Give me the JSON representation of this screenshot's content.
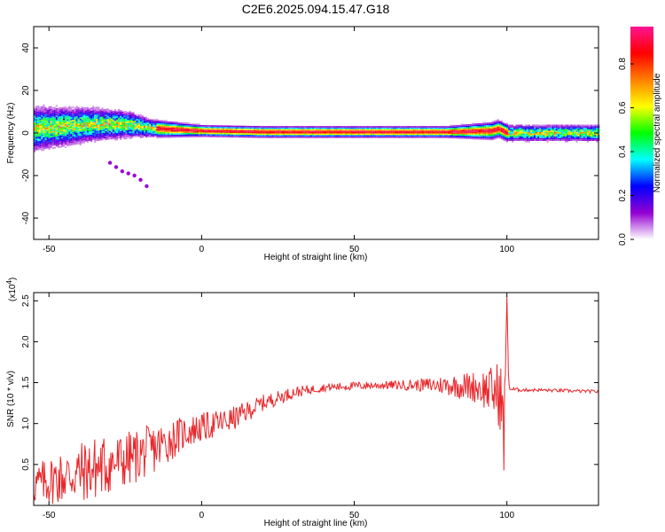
{
  "title": "C2E6.2025.094.15.47.G18",
  "chart_data": [
    {
      "type": "heatmap",
      "xlabel": "Height of straight line (km)",
      "ylabel": "Frequency (Hz)",
      "xlim": [
        -55,
        130
      ],
      "ylim": [
        -50,
        50
      ],
      "xticks": [
        -50,
        0,
        50,
        100
      ],
      "yticks": [
        40,
        20,
        0,
        -20,
        -40
      ],
      "colorbar": {
        "label": "Normalized spectral amplitude",
        "range": [
          0,
          0.97
        ],
        "ticks": [
          "0.0",
          "0.2",
          "0.4",
          "0.6",
          "0.8"
        ],
        "tick_values": [
          0,
          0.2,
          0.4,
          0.6,
          0.8
        ],
        "colors": [
          "#ffffff",
          "#9400d3",
          "#0000ff",
          "#00ffff",
          "#00ff00",
          "#ffff00",
          "#ff7f00",
          "#ff0000",
          "#ff1493"
        ]
      },
      "ridge": {
        "description_points_x": [
          -55,
          -45,
          -35,
          -25,
          -15,
          0,
          20,
          40,
          60,
          80,
          95,
          97,
          100,
          130
        ],
        "center_freq": [
          2,
          3,
          4,
          4,
          2,
          1,
          0.5,
          0.5,
          0.5,
          0.5,
          1,
          2,
          0,
          0
        ],
        "halfwidth": [
          8,
          7,
          6,
          5,
          3,
          2,
          2,
          2,
          2,
          2,
          3,
          3,
          3,
          3
        ],
        "max_amp_range_x": [
          -15,
          100
        ]
      },
      "scatter_tail": {
        "x": [
          -30,
          -28,
          -26,
          -24,
          -22,
          -20,
          -18
        ],
        "freq": [
          -14,
          -16,
          -18,
          -19,
          -20,
          -22,
          -25
        ]
      }
    },
    {
      "type": "line",
      "xlabel": "Height of straight line (km)",
      "ylabel": "SNR (10 * v/v)",
      "scale_label": "(x10",
      "scale_exp": "4",
      "scale_close": ")",
      "xlim": [
        -55,
        130
      ],
      "ylim": [
        0,
        2.6
      ],
      "xticks": [
        -50,
        0,
        50,
        100
      ],
      "yticks": [
        0.5,
        1.0,
        1.5,
        2.0,
        2.5
      ],
      "color": "#e8262a",
      "envelope": {
        "x": [
          -55,
          -45,
          -35,
          -25,
          -15,
          -5,
          0,
          10,
          20,
          30,
          40,
          50,
          60,
          70,
          80,
          90,
          95,
          98,
          99,
          100,
          100.5,
          101,
          105,
          110,
          120,
          130
        ],
        "mean": [
          0.25,
          0.35,
          0.45,
          0.55,
          0.7,
          0.9,
          0.95,
          1.05,
          1.25,
          1.38,
          1.44,
          1.46,
          1.47,
          1.47,
          1.47,
          1.45,
          1.4,
          1.35,
          0.8,
          2.55,
          1.6,
          1.42,
          1.41,
          1.41,
          1.4,
          1.39
        ],
        "noise": [
          0.25,
          0.35,
          0.4,
          0.35,
          0.3,
          0.2,
          0.18,
          0.15,
          0.1,
          0.07,
          0.05,
          0.05,
          0.05,
          0.07,
          0.12,
          0.2,
          0.3,
          0.45,
          0.45,
          0.0,
          0.1,
          0.03,
          0.02,
          0.02,
          0.02,
          0.02
        ]
      }
    }
  ]
}
